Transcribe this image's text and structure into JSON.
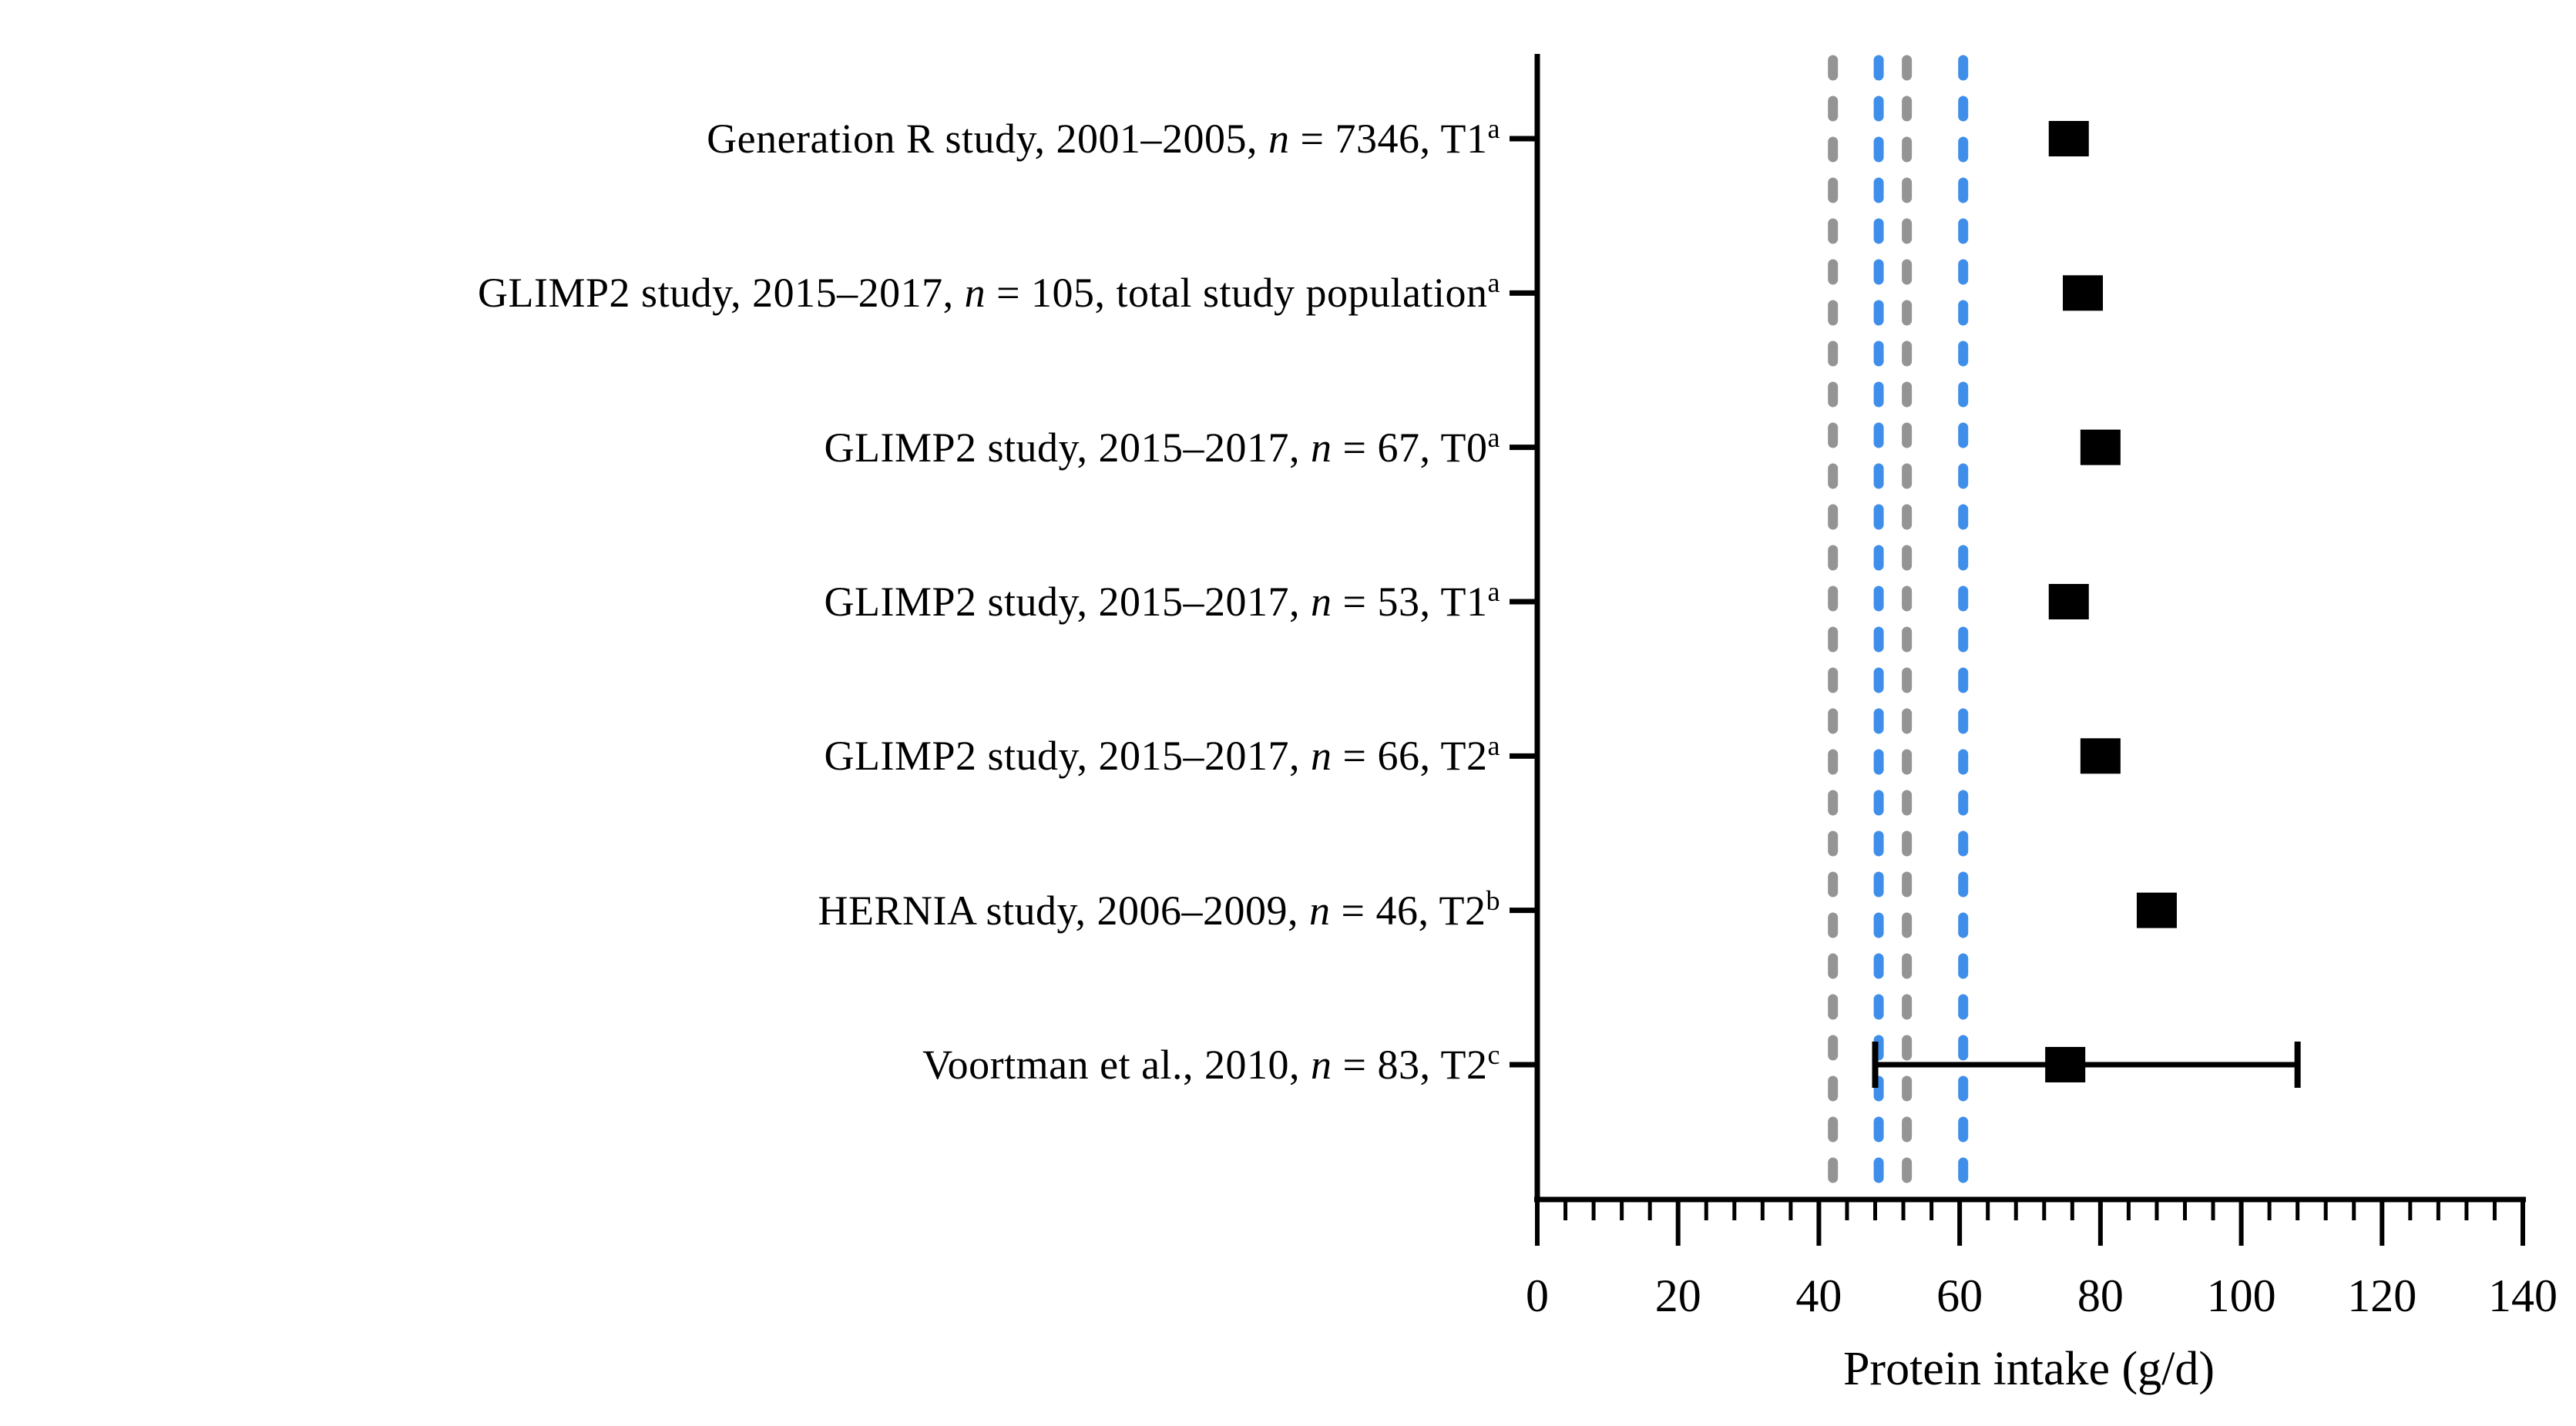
{
  "figure": {
    "background_color": "#ffffff",
    "text_color": "#000000"
  },
  "chart_data": {
    "type": "scatter",
    "subtype": "horizontal-dot-plot-with-error-bar",
    "title": "",
    "xlabel": "Protein intake (g/d)",
    "ylabel": "",
    "xlim": [
      0,
      140
    ],
    "x_major_ticks": [
      0,
      20,
      40,
      60,
      80,
      100,
      120,
      140
    ],
    "x_minor_tick_step": 4,
    "grid": false,
    "legend": null,
    "marker": {
      "shape": "square",
      "color": "#000000"
    },
    "rows": [
      {
        "label_pre": "Generation R study, 2001–2005, ",
        "label_n": "n",
        "label_post": " = 7346, T1",
        "label_sup": "a",
        "value": 75.5
      },
      {
        "label_pre": "GLIMP2 study, 2015–2017, ",
        "label_n": "n",
        "label_post": " = 105, total study population",
        "label_sup": "a",
        "value": 77.5
      },
      {
        "label_pre": "GLIMP2 study, 2015–2017, ",
        "label_n": "n",
        "label_post": " = 67, T0",
        "label_sup": "a",
        "value": 80
      },
      {
        "label_pre": "GLIMP2 study, 2015–2017, ",
        "label_n": "n",
        "label_post": " = 53, T1",
        "label_sup": "a",
        "value": 75.5
      },
      {
        "label_pre": "GLIMP2 study, 2015–2017, ",
        "label_n": "n",
        "label_post": " = 66, T2",
        "label_sup": "a",
        "value": 80
      },
      {
        "label_pre": "HERNIA study, 2006–2009, ",
        "label_n": "n",
        "label_post": " = 46, T2",
        "label_sup": "b",
        "value": 88
      },
      {
        "label_pre": "Voortman et al., 2010, ",
        "label_n": "n",
        "label_post": " = 83, T2",
        "label_sup": "c",
        "value": 75,
        "error_low": 48,
        "error_high": 108
      }
    ],
    "reference_lines": [
      {
        "value": 42,
        "color": "#949494",
        "style": "dashed"
      },
      {
        "value": 48.5,
        "color": "#3f8eea",
        "style": "dashed"
      },
      {
        "value": 52.5,
        "color": "#949494",
        "style": "dashed"
      },
      {
        "value": 60.5,
        "color": "#3f8eea",
        "style": "dashed"
      }
    ],
    "colors": {
      "marker": "#000000",
      "axis": "#000000",
      "gray_dashed": "#949494",
      "blue_dashed": "#3f8eea"
    }
  }
}
